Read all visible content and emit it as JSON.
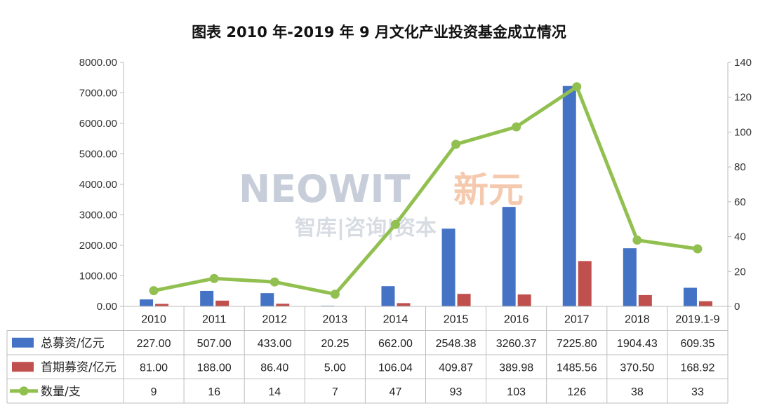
{
  "chart_data": {
    "type": "bar",
    "title": "图表  2010 年-2019 年 9 月文化产业投资基金成立情况",
    "categories": [
      "2010",
      "2011",
      "2012",
      "2013",
      "2014",
      "2015",
      "2016",
      "2017",
      "2018",
      "2019.1-9"
    ],
    "series": [
      {
        "name": "总募资/亿元",
        "type": "bar",
        "axis": "left",
        "color": "#4472c4",
        "values": [
          227.0,
          507.0,
          433.0,
          20.25,
          662.0,
          2548.38,
          3260.37,
          7225.8,
          1904.43,
          609.35
        ],
        "labels": [
          "227.00",
          "507.00",
          "433.00",
          "20.25",
          "662.00",
          "2548.38",
          "3260.37",
          "7225.80",
          "1904.43",
          "609.35"
        ]
      },
      {
        "name": "首期募资/亿元",
        "type": "bar",
        "axis": "left",
        "color": "#c0504d",
        "values": [
          81.0,
          188.0,
          86.4,
          5.0,
          106.04,
          409.87,
          389.98,
          1485.56,
          370.5,
          168.92
        ],
        "labels": [
          "81.00",
          "188.00",
          "86.40",
          "5.00",
          "106.04",
          "409.87",
          "389.98",
          "1485.56",
          "370.50",
          "168.92"
        ]
      },
      {
        "name": "数量/支",
        "type": "line",
        "axis": "right",
        "color": "#92c050",
        "values": [
          9,
          16,
          14,
          7,
          47,
          93,
          103,
          126,
          38,
          33
        ],
        "labels": [
          "9",
          "16",
          "14",
          "7",
          "47",
          "93",
          "103",
          "126",
          "38",
          "33"
        ]
      }
    ],
    "y_left": {
      "min": 0,
      "max": 8000,
      "ticks": [
        "0.00",
        "1000.00",
        "2000.00",
        "3000.00",
        "4000.00",
        "5000.00",
        "6000.00",
        "7000.00",
        "8000.00"
      ]
    },
    "y_right": {
      "min": 0,
      "max": 140,
      "ticks": [
        "0",
        "20",
        "40",
        "60",
        "80",
        "100",
        "120",
        "140"
      ]
    },
    "grid": false,
    "legend": "data table below chart"
  },
  "watermark": {
    "brand": "NEOWIT",
    "brand_cn": "新元",
    "tagline": "智库|咨询|资本"
  }
}
